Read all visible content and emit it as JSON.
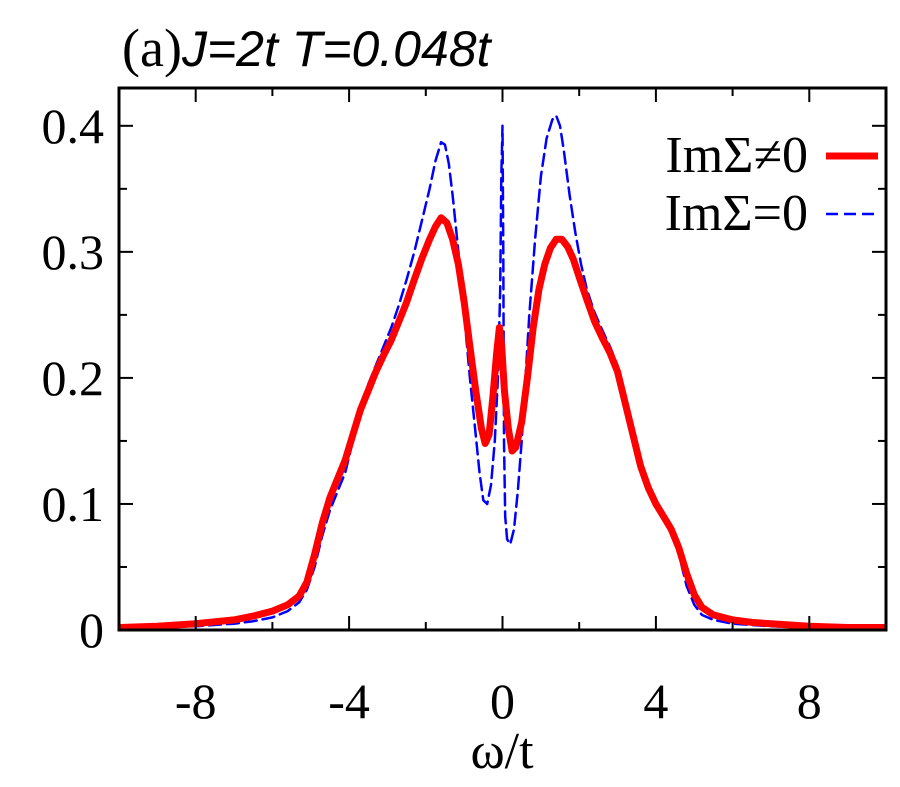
{
  "chart_data": {
    "type": "line",
    "title_prefix": "(a)",
    "title_main": "J=2t T=0.048t",
    "xlabel": "ω/t",
    "ylabel": "",
    "xlim": [
      -10,
      10
    ],
    "ylim": [
      0,
      0.43
    ],
    "xticks": [
      -8,
      -4,
      0,
      4,
      8
    ],
    "xtick_labels": [
      "-8",
      "-4",
      "0",
      "4",
      "8"
    ],
    "yticks": [
      0,
      0.1,
      0.2,
      0.3,
      0.4
    ],
    "ytick_labels": [
      "0",
      "0.1",
      "0.2",
      "0.3",
      "0.4"
    ],
    "grid": false,
    "legend_position": "top-right",
    "series": [
      {
        "name": "ImΣ≠0",
        "color": "#ff0000",
        "style": "solid",
        "x": [
          -10,
          -9,
          -8,
          -7,
          -6.5,
          -6,
          -5.6,
          -5.3,
          -5.1,
          -4.9,
          -4.7,
          -4.5,
          -4.3,
          -4.1,
          -3.9,
          -3.7,
          -3.5,
          -3.3,
          -3.1,
          -2.9,
          -2.7,
          -2.5,
          -2.3,
          -2.1,
          -1.9,
          -1.75,
          -1.6,
          -1.45,
          -1.3,
          -1.15,
          -1.0,
          -0.85,
          -0.7,
          -0.55,
          -0.45,
          -0.35,
          -0.25,
          -0.15,
          -0.08,
          -0.02,
          0.05,
          0.15,
          0.25,
          0.35,
          0.5,
          0.65,
          0.8,
          0.95,
          1.1,
          1.25,
          1.4,
          1.55,
          1.7,
          1.85,
          2.0,
          2.2,
          2.4,
          2.6,
          2.8,
          3.0,
          3.2,
          3.4,
          3.6,
          3.8,
          4.0,
          4.2,
          4.4,
          4.6,
          4.8,
          5.0,
          5.2,
          5.5,
          6.0,
          6.5,
          7.0,
          8.0,
          9.0,
          10.0
        ],
        "y": [
          0.002,
          0.003,
          0.005,
          0.008,
          0.011,
          0.015,
          0.02,
          0.027,
          0.038,
          0.06,
          0.085,
          0.105,
          0.12,
          0.135,
          0.155,
          0.175,
          0.19,
          0.205,
          0.218,
          0.23,
          0.245,
          0.26,
          0.278,
          0.295,
          0.31,
          0.32,
          0.327,
          0.323,
          0.31,
          0.29,
          0.26,
          0.225,
          0.19,
          0.16,
          0.148,
          0.155,
          0.185,
          0.22,
          0.24,
          0.225,
          0.19,
          0.16,
          0.142,
          0.145,
          0.165,
          0.2,
          0.24,
          0.27,
          0.29,
          0.303,
          0.31,
          0.31,
          0.304,
          0.294,
          0.28,
          0.262,
          0.245,
          0.232,
          0.22,
          0.205,
          0.18,
          0.155,
          0.13,
          0.113,
          0.1,
          0.09,
          0.08,
          0.065,
          0.045,
          0.028,
          0.018,
          0.012,
          0.008,
          0.006,
          0.005,
          0.003,
          0.002,
          0.002
        ]
      },
      {
        "name": "ImΣ=0",
        "color": "#0000ff",
        "style": "dashed",
        "x": [
          -10,
          -9,
          -8,
          -7,
          -6.5,
          -6,
          -5.6,
          -5.3,
          -5.1,
          -4.9,
          -4.7,
          -4.5,
          -4.3,
          -4.1,
          -3.9,
          -3.7,
          -3.5,
          -3.3,
          -3.1,
          -2.9,
          -2.7,
          -2.5,
          -2.3,
          -2.1,
          -1.9,
          -1.75,
          -1.6,
          -1.5,
          -1.4,
          -1.3,
          -1.15,
          -1.0,
          -0.85,
          -0.7,
          -0.6,
          -0.5,
          -0.4,
          -0.3,
          -0.2,
          -0.12,
          -0.06,
          -0.03,
          0.0,
          0.02,
          0.04,
          0.07,
          0.12,
          0.2,
          0.3,
          0.4,
          0.5,
          0.6,
          0.7,
          0.85,
          1.0,
          1.15,
          1.3,
          1.4,
          1.5,
          1.6,
          1.75,
          1.9,
          2.05,
          2.2,
          2.4,
          2.6,
          2.8,
          3.0,
          3.2,
          3.4,
          3.6,
          3.8,
          4.0,
          4.2,
          4.4,
          4.6,
          4.8,
          5.0,
          5.2,
          5.5,
          6.0,
          6.5,
          7.0,
          8.0,
          9.0,
          10.0
        ],
        "y": [
          0.001,
          0.002,
          0.003,
          0.005,
          0.007,
          0.01,
          0.015,
          0.022,
          0.032,
          0.05,
          0.075,
          0.095,
          0.11,
          0.125,
          0.15,
          0.175,
          0.195,
          0.21,
          0.225,
          0.24,
          0.258,
          0.278,
          0.3,
          0.325,
          0.35,
          0.372,
          0.387,
          0.385,
          0.37,
          0.345,
          0.3,
          0.25,
          0.2,
          0.155,
          0.125,
          0.103,
          0.1,
          0.115,
          0.15,
          0.2,
          0.27,
          0.36,
          0.4,
          0.3,
          0.15,
          0.09,
          0.072,
          0.068,
          0.08,
          0.11,
          0.15,
          0.2,
          0.25,
          0.31,
          0.36,
          0.39,
          0.405,
          0.408,
          0.4,
          0.38,
          0.345,
          0.315,
          0.29,
          0.27,
          0.252,
          0.238,
          0.225,
          0.21,
          0.18,
          0.155,
          0.128,
          0.11,
          0.1,
          0.09,
          0.08,
          0.06,
          0.035,
          0.02,
          0.012,
          0.008,
          0.005,
          0.004,
          0.003,
          0.002,
          0.001,
          0.001
        ]
      }
    ]
  }
}
